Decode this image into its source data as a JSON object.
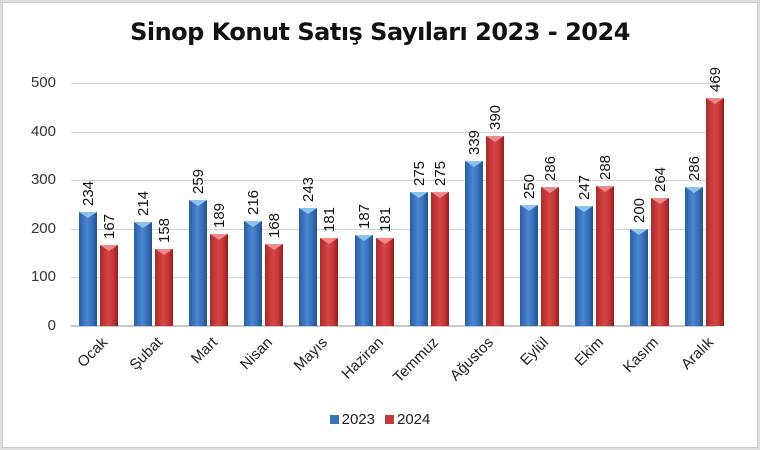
{
  "chart_data": {
    "type": "bar",
    "title": "Sinop Konut Satış Sayıları  2023 - 2024",
    "xlabel": "",
    "ylabel": "",
    "ylim": [
      0,
      500
    ],
    "yticks": [
      0,
      100,
      200,
      300,
      400,
      500
    ],
    "grid": true,
    "legend_position": "bottom",
    "categories": [
      "Ocak",
      "Şubat",
      "Mart",
      "Nisan",
      "Mayıs",
      "Haziran",
      "Temmuz",
      "Ağustos",
      "Eylül",
      "Ekim",
      "Kasım",
      "Aralık"
    ],
    "series": [
      {
        "name": "2023",
        "color": "#3a72bd",
        "values": [
          234,
          214,
          259,
          216,
          243,
          187,
          275,
          339,
          250,
          247,
          200,
          286
        ]
      },
      {
        "name": "2024",
        "color": "#c73a3a",
        "values": [
          167,
          158,
          189,
          168,
          181,
          181,
          275,
          390,
          286,
          288,
          264,
          469
        ]
      }
    ]
  }
}
